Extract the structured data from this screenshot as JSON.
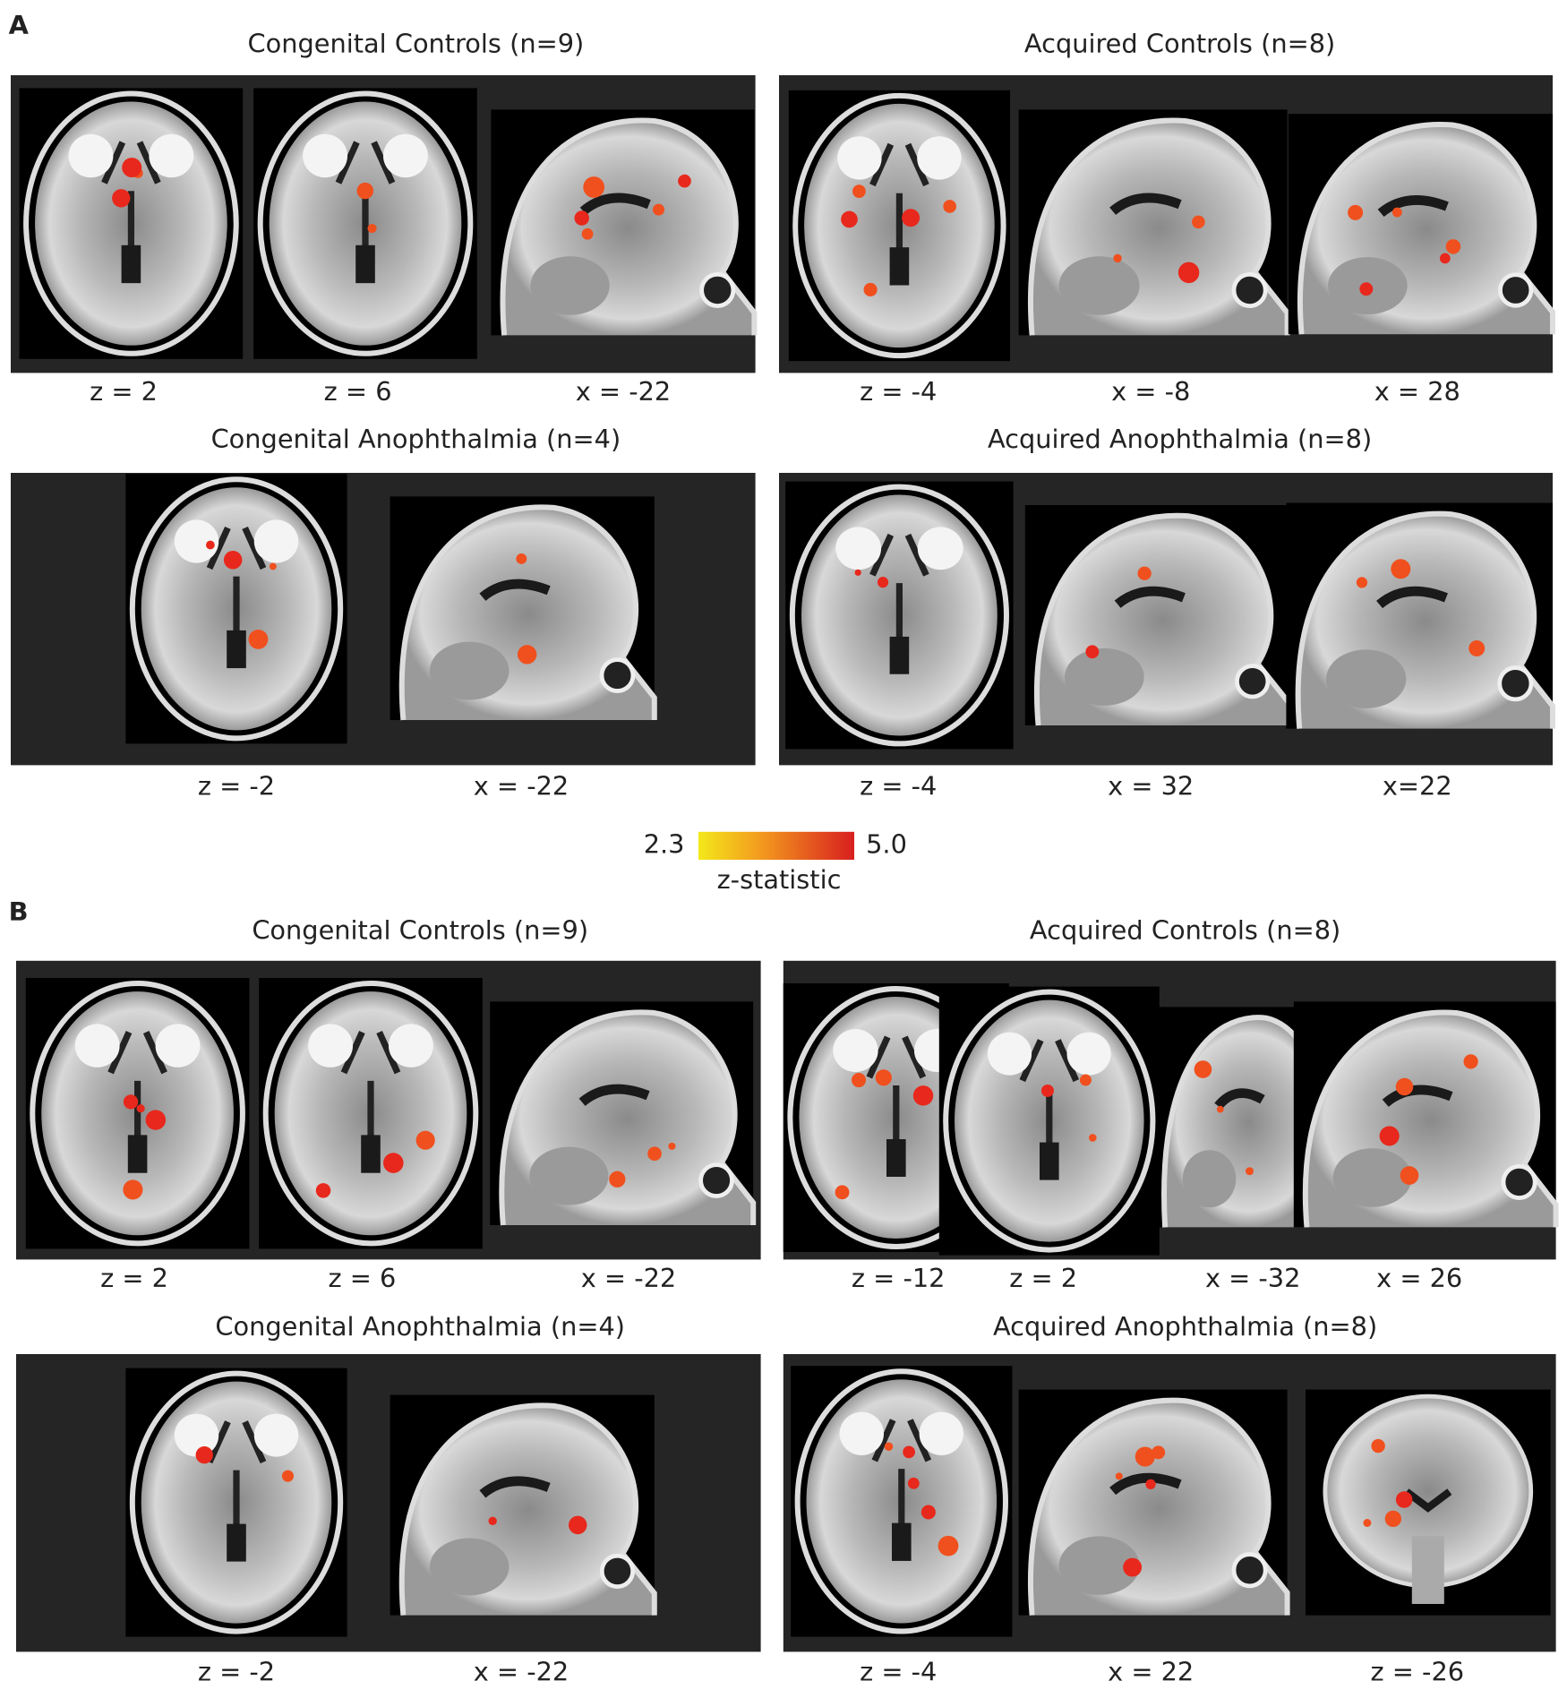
{
  "panels": [
    {
      "label": "A",
      "groups": [
        {
          "title": "Congenital Controls (n=9)",
          "slices": [
            "z = 2",
            "z = 6",
            "x = -22"
          ]
        },
        {
          "title": "Acquired Controls (n=8)",
          "slices": [
            "z = -4",
            "x = -8",
            "x = 28"
          ]
        },
        {
          "title": "Congenital Anophthalmia (n=4)",
          "slices": [
            "z = -2",
            "x = -22"
          ]
        },
        {
          "title": "Acquired Anophthalmia (n=8)",
          "slices": [
            "z = -4",
            "x = 32",
            "x=22"
          ]
        }
      ]
    },
    {
      "label": "B",
      "groups": [
        {
          "title": "Congenital Controls (n=9)",
          "slices": [
            "z = 2",
            "z = 6",
            "x = -22"
          ]
        },
        {
          "title": "Acquired Controls (n=8)",
          "slices": [
            "z = -12",
            "z = 2",
            "x = -32",
            "x = 26"
          ]
        },
        {
          "title": "Congenital Anophthalmia (n=4)",
          "slices": [
            "z = -2",
            "x = -22"
          ]
        },
        {
          "title": "Acquired Anophthalmia (n=8)",
          "slices": [
            "z = -4",
            "x = 22",
            "z = -26"
          ]
        }
      ]
    }
  ],
  "colorbar": {
    "min": "2.3",
    "max": "5.0",
    "label": "z-statistic"
  }
}
